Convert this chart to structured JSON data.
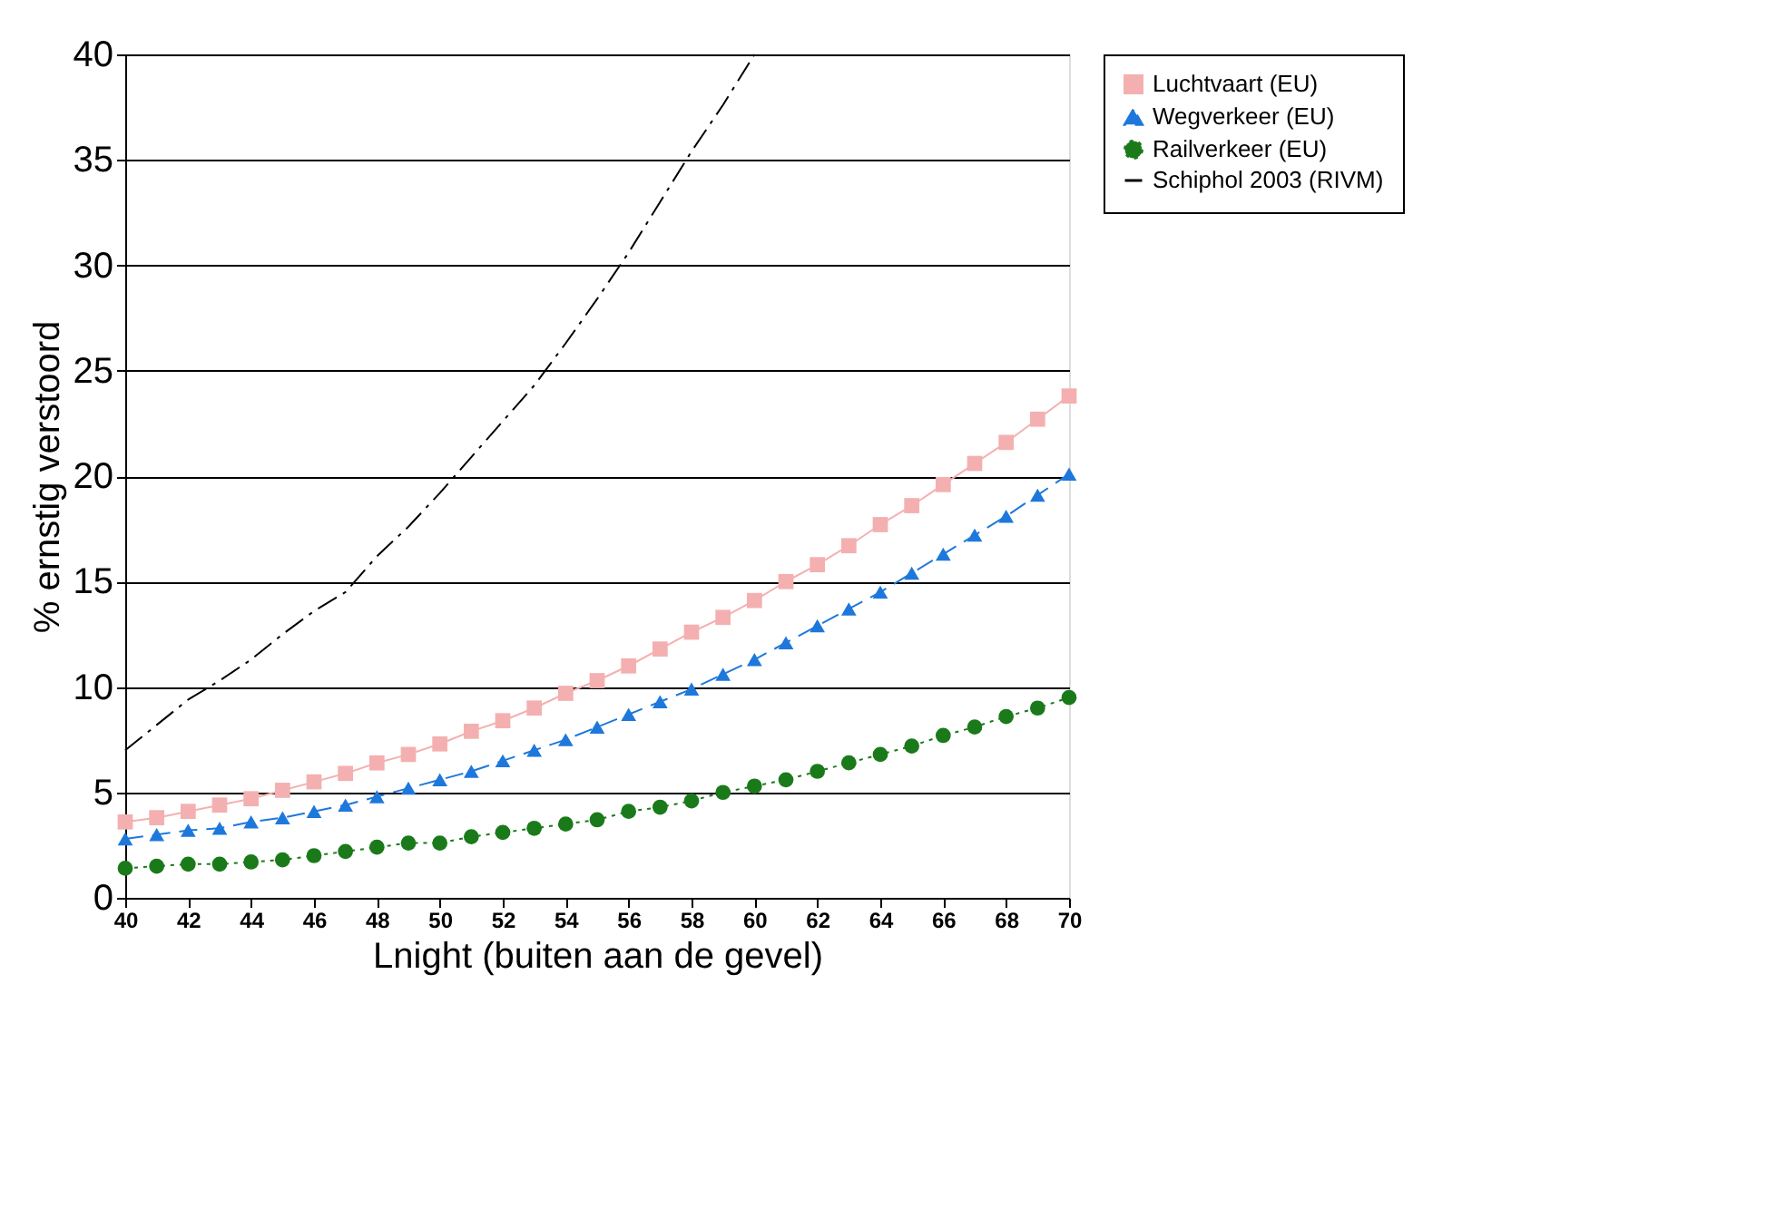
{
  "chart_data": {
    "type": "line",
    "xlabel": "Lnight (buiten aan de gevel)",
    "ylabel": "% ernstig verstoord",
    "xlim": [
      40,
      70
    ],
    "xticks": [
      40,
      42,
      44,
      46,
      48,
      50,
      52,
      54,
      56,
      58,
      60,
      62,
      64,
      66,
      68,
      70
    ],
    "ylim": [
      0,
      40
    ],
    "yticks": [
      0,
      5,
      10,
      15,
      20,
      25,
      30,
      35,
      40
    ],
    "grid": "y",
    "legend": "top right",
    "x": [
      40,
      41,
      42,
      43,
      44,
      45,
      46,
      47,
      48,
      49,
      50,
      51,
      52,
      53,
      54,
      55,
      56,
      57,
      58,
      59,
      60,
      61,
      62,
      63,
      64,
      65,
      66,
      67,
      68,
      69,
      70
    ],
    "series": [
      {
        "name": "Luchtvaart (EU)",
        "color": "#f4b0b0",
        "marker": "square",
        "line_style": "solid",
        "values": [
          3.6,
          3.8,
          4.1,
          4.4,
          4.7,
          5.1,
          5.5,
          5.9,
          6.4,
          6.8,
          7.3,
          7.9,
          8.4,
          9.0,
          9.7,
          10.3,
          11.0,
          11.8,
          12.6,
          13.3,
          14.1,
          15.0,
          15.8,
          16.7,
          17.7,
          18.6,
          19.6,
          20.6,
          21.6,
          22.7,
          23.8
        ]
      },
      {
        "name": "Wegverkeer (EU)",
        "color": "#1e78dc",
        "marker": "triangle",
        "line_style": "dashed",
        "values": [
          2.8,
          3.0,
          3.2,
          3.3,
          3.6,
          3.8,
          4.1,
          4.4,
          4.8,
          5.2,
          5.6,
          6.0,
          6.5,
          7.0,
          7.5,
          8.1,
          8.7,
          9.3,
          9.9,
          10.6,
          11.3,
          12.1,
          12.9,
          13.7,
          14.5,
          15.4,
          16.3,
          17.2,
          18.1,
          19.1,
          20.1
        ]
      },
      {
        "name": "Railverkeer (EU)",
        "color": "#1a7a1a",
        "marker": "circle",
        "line_style": "dotted",
        "values": [
          1.4,
          1.5,
          1.6,
          1.6,
          1.7,
          1.8,
          2.0,
          2.2,
          2.4,
          2.6,
          2.6,
          2.9,
          3.1,
          3.3,
          3.5,
          3.7,
          4.1,
          4.3,
          4.6,
          5.0,
          5.3,
          5.6,
          6.0,
          6.4,
          6.8,
          7.2,
          7.7,
          8.1,
          8.6,
          9.0,
          9.5
        ]
      },
      {
        "name": "Schiphol 2003 (RIVM)",
        "color": "#000000",
        "marker": "none",
        "line_style": "dashdot",
        "x": [
          40,
          41,
          42,
          43,
          44,
          45,
          46,
          47,
          48,
          49,
          50,
          51,
          52,
          53,
          54,
          55,
          56,
          57,
          58,
          59,
          60
        ],
        "values": [
          7.0,
          8.2,
          9.4,
          10.3,
          11.3,
          12.5,
          13.6,
          14.5,
          16.2,
          17.6,
          19.2,
          20.9,
          22.6,
          24.3,
          26.3,
          28.4,
          30.6,
          33.0,
          35.4,
          37.6,
          40.0
        ]
      }
    ]
  }
}
